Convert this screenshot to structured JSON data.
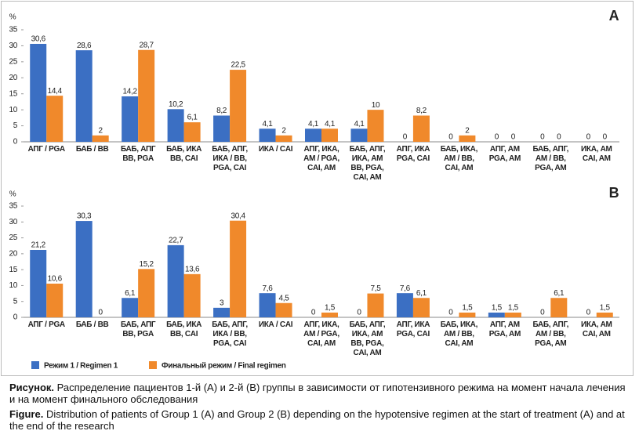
{
  "chart_data": [
    {
      "type": "bar",
      "label": "A",
      "y_label": "%",
      "categories": [
        "АПГ / PGA",
        "БАБ / ВВ",
        "БАБ, АПГ\nВВ, PGA",
        "БАБ, ИКА\nВВ, CAI",
        "БАБ, АПГ,\nИКА / ВВ,\nPGA, CAI",
        "ИКА / CAI",
        "АПГ, ИКА,\nАМ / PGA,\nCAI, AM",
        "БАБ, АПГ,\nИКА, АМ\nВВ, PGA,\nCAI, AM",
        "АПГ, ИКА\nPGA, CAI",
        "БАБ, ИКА,\nАМ / ВВ,\nCAI, AM",
        "АПГ, АМ\nPGA, AM",
        "БАБ, АПГ,\nАМ / ВВ,\nPGA, AM",
        "ИКА, АМ\nCAI, AM"
      ],
      "series": [
        {
          "color": "#3b6fc3",
          "values": [
            30.6,
            28.6,
            14.2,
            10.2,
            8.2,
            4.1,
            4.1,
            4.1,
            0,
            0,
            0,
            0,
            0
          ],
          "value_labels": [
            "30,6",
            "28,6",
            "14,2",
            "10,2",
            "8,2",
            "4,1",
            "4,1",
            "4,1",
            "0",
            "0",
            "0",
            "0",
            "0"
          ]
        },
        {
          "color": "#f0892b",
          "values": [
            14.4,
            2,
            28.7,
            6.1,
            22.5,
            2,
            4.1,
            10,
            8.2,
            2,
            0,
            0,
            0
          ],
          "value_labels": [
            "14,4",
            "2",
            "28,7",
            "6,1",
            "22,5",
            "2",
            "4,1",
            "10",
            "8,2",
            "2",
            "0",
            "0",
            "0"
          ]
        }
      ],
      "ylim": [
        0,
        35
      ],
      "yticks": [
        0,
        5,
        10,
        15,
        20,
        25,
        30,
        35
      ]
    },
    {
      "type": "bar",
      "label": "B",
      "y_label": "%",
      "categories": [
        "АПГ / PGA",
        "БАБ / ВВ",
        "БАБ, АПГ\nВВ, PGA",
        "БАБ, ИКА\nВВ, CAI",
        "БАБ, АПГ,\nИКА / ВВ,\nPGA, CAI",
        "ИКА / CAI",
        "АПГ, ИКА,\nАМ / PGA,\nCAI, AM",
        "БАБ, АПГ,\nИКА, АМ\nВВ, PGA,\nCAI, AM",
        "АПГ, ИКА\nPGA, CAI",
        "БАБ, ИКА,\nАМ / ВВ,\nCAI, AM",
        "АПГ, АМ\nPGA, AM",
        "БАБ, АПГ,\nАМ / ВВ,\nPGA, AM",
        "ИКА, АМ\nCAI, AM"
      ],
      "series": [
        {
          "name": "Режим 1 / Regimen 1",
          "color": "#3b6fc3",
          "values": [
            21.2,
            30.3,
            6.1,
            22.7,
            3,
            7.6,
            0,
            0,
            7.6,
            0,
            1.5,
            0,
            0
          ],
          "value_labels": [
            "21,2",
            "30,3",
            "6,1",
            "22,7",
            "3",
            "7,6",
            "0",
            "0",
            "7,6",
            "0",
            "1,5",
            "0",
            "0"
          ]
        },
        {
          "name": "Финальный режим / Final regimen",
          "color": "#f0892b",
          "values": [
            10.6,
            0,
            15.2,
            13.6,
            30.4,
            4.5,
            1.5,
            7.5,
            6.1,
            1.5,
            1.5,
            6.1,
            1.5
          ],
          "value_labels": [
            "10,6",
            "0",
            "15,2",
            "13,6",
            "30,4",
            "4,5",
            "1,5",
            "7,5",
            "6,1",
            "1,5",
            "1,5",
            "6,1",
            "1,5"
          ]
        }
      ],
      "ylim": [
        0,
        35
      ],
      "yticks": [
        0,
        5,
        10,
        15,
        20,
        25,
        30,
        35
      ]
    }
  ],
  "caption": {
    "ru": {
      "label": "Рисунок.",
      "text": "Распределение пациентов 1-й (А) и 2-й (В) группы в зависимости от гипотензивного режима на момент начала лечения и на момент финального обследования"
    },
    "en": {
      "label": "Figure.",
      "text": "Distribution of patients of Group 1 (A) and Group 2 (B) depending on the hypotensive regimen at the start of treatment (A) and at the end of the research"
    }
  }
}
